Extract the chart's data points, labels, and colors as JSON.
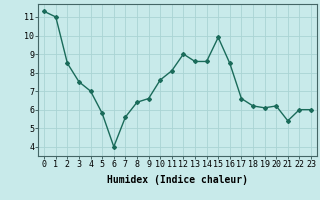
{
  "x": [
    0,
    1,
    2,
    3,
    4,
    5,
    6,
    7,
    8,
    9,
    10,
    11,
    12,
    13,
    14,
    15,
    16,
    17,
    18,
    19,
    20,
    21,
    22,
    23
  ],
  "y": [
    11.3,
    11.0,
    8.5,
    7.5,
    7.0,
    5.8,
    4.0,
    5.6,
    6.4,
    6.6,
    7.6,
    8.1,
    9.0,
    8.6,
    8.6,
    9.9,
    8.5,
    6.6,
    6.2,
    6.1,
    6.2,
    5.4,
    6.0,
    6.0
  ],
  "line_color": "#1a6b5a",
  "marker": "D",
  "marker_size": 2,
  "linewidth": 1.0,
  "background_color": "#c8eaea",
  "grid_color": "#aad4d4",
  "xlabel": "Humidex (Indice chaleur)",
  "xlabel_fontsize": 7,
  "tick_fontsize": 6,
  "xlim": [
    -0.5,
    23.5
  ],
  "ylim": [
    3.5,
    11.7
  ],
  "yticks": [
    4,
    5,
    6,
    7,
    8,
    9,
    10,
    11
  ],
  "xticks": [
    0,
    1,
    2,
    3,
    4,
    5,
    6,
    7,
    8,
    9,
    10,
    11,
    12,
    13,
    14,
    15,
    16,
    17,
    18,
    19,
    20,
    21,
    22,
    23
  ]
}
